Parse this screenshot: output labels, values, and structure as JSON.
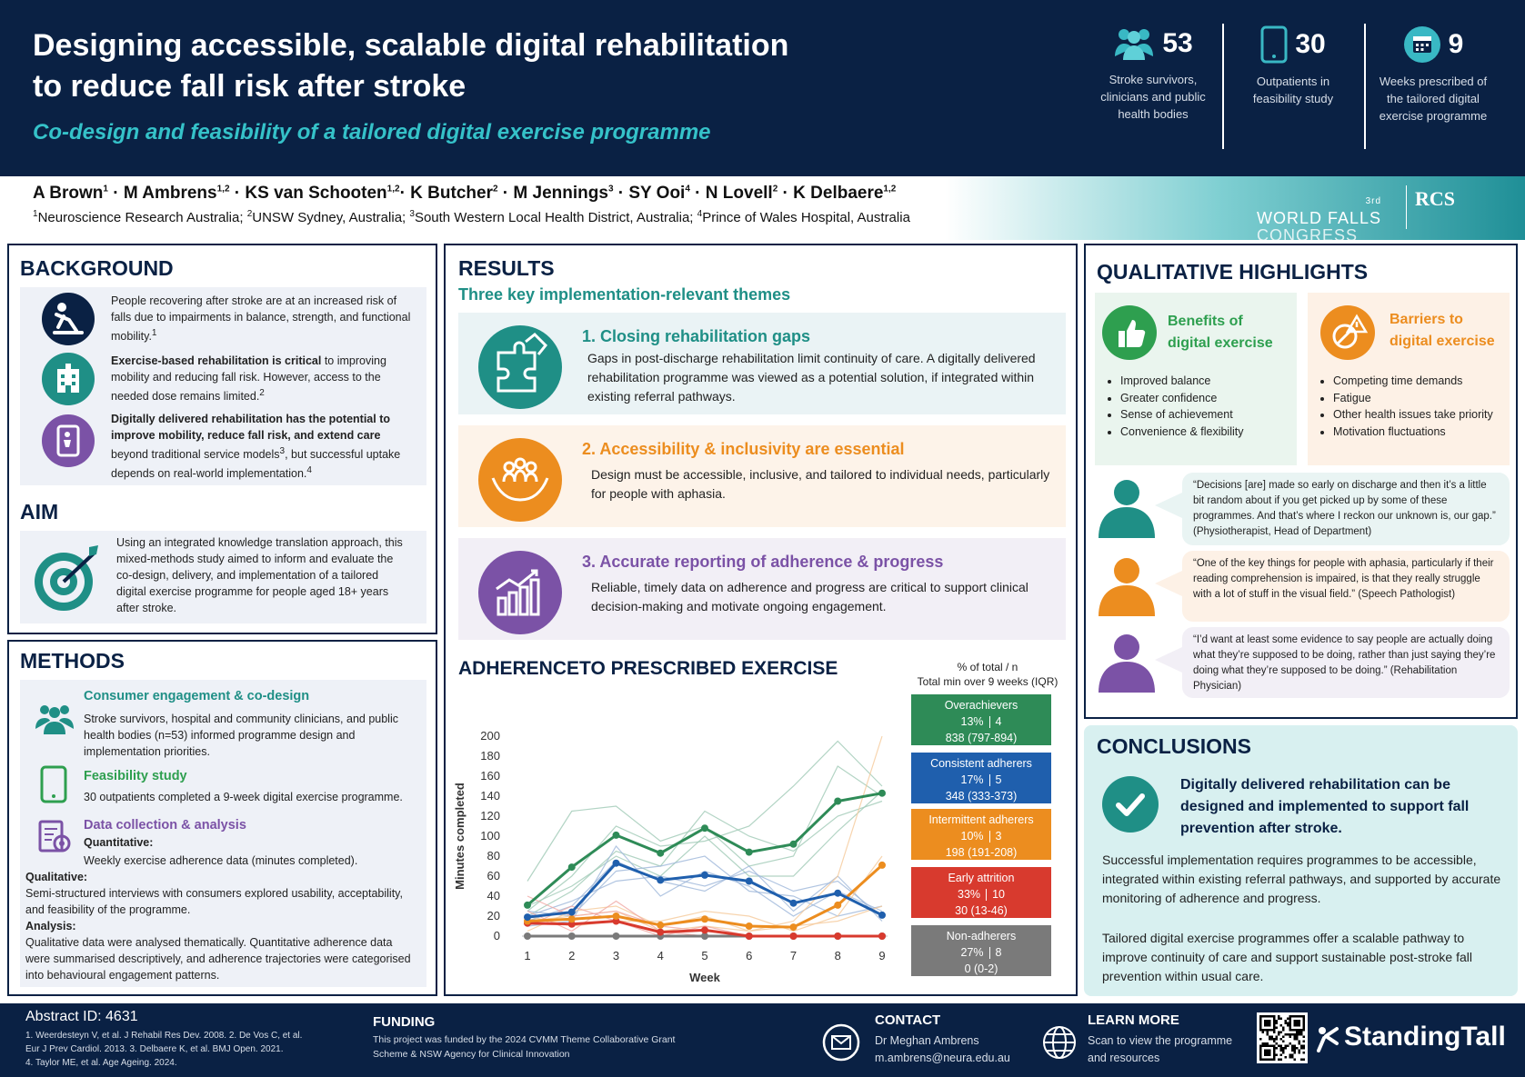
{
  "header": {
    "title_line1": "Designing accessible, scalable digital rehabilitation",
    "title_line2": "to reduce fall risk after stroke",
    "subtitle": "Co-design and feasibility of a tailored digital exercise programme"
  },
  "stats": [
    {
      "icon": "people-icon",
      "value": "53",
      "label_l1": "Stroke survivors,",
      "label_l2": "clinicians and public",
      "label_l3": "health bodies"
    },
    {
      "icon": "tablet-icon",
      "value": "30",
      "label_l1": "Outpatients in",
      "label_l2": "feasibility study",
      "label_l3": ""
    },
    {
      "icon": "calendar-icon",
      "value": "9",
      "label_l1": "Weeks prescribed of",
      "label_l2": "the tailored digital",
      "label_l3": "exercise programme"
    }
  ],
  "authors": {
    "a1": "A Brown",
    "s1": "1",
    "a2": " · M Ambrens",
    "s2": "1,2",
    "a3": " · KS van Schooten",
    "s3": "1,2",
    "a4": "· K Butcher",
    "s4": "2",
    "a5": " · M Jennings",
    "s5": "3",
    "a6": " · SY Ooi",
    "s6": "4",
    "a7": " · N Lovell",
    "s7": "2",
    "a8": " · K Delbaere",
    "s8": "1,2"
  },
  "affiliations": {
    "s1": "1",
    "t1": "Neuroscience Research Australia; ",
    "s2": "2",
    "t2": "UNSW Sydney, Australia; ",
    "s3": "3",
    "t3": "South Western Local Health District, Australia; ",
    "s4": "4",
    "t4": "Prince of Wales Hospital, Australia"
  },
  "logos": {
    "wfc_ord": "3rd",
    "wfc_l1": "WORLD FALLS",
    "wfc_l2": "CONGRESS",
    "rcs": "RCS"
  },
  "background": {
    "heading": "BACKGROUND",
    "p1": "People recovering after stroke are at an increased risk of falls due to impairments in balance, strength, and functional mobility.",
    "p1_sup": "1",
    "p2_bold": "Exercise-based rehabilitation is critical",
    "p2": " to improving mobility and reducing fall risk. However, access to the needed dose remains limited.",
    "p2_sup": "2",
    "p3_bold": "Digitally delivered rehabilitation has the potential to improve mobility, reduce fall risk, and extend care",
    "p3a": " beyond traditional service models",
    "p3_sup1": "3",
    "p3b": ", but successful uptake depends on real-world implementation.",
    "p3_sup2": "4"
  },
  "aim": {
    "heading": "AIM",
    "text": "Using an integrated knowledge translation approach, this mixed-methods study aimed to inform and evaluate the co-design, delivery, and implementation of a tailored digital exercise programme for people aged 18+ years after stroke."
  },
  "methods": {
    "heading": "METHODS",
    "m1_title": "Consumer engagement & co-design",
    "m1_text": "Stroke survivors, hospital and community clinicians, and public health bodies (n=53) informed programme design and implementation priorities.",
    "m2_title": "Feasibility study",
    "m2_text": "30 outpatients completed a 9-week digital exercise programme.",
    "m3_title": "Data collection & analysis",
    "quant_label": "Quantitative:",
    "quant_text": "Weekly exercise adherence data (minutes completed).",
    "qual_label": "Qualitative:",
    "qual_text": "Semi-structured interviews with consumers explored usability, acceptability, and feasibility of the programme.",
    "analysis_label": "Analysis:",
    "analysis_text": "Qualitative data were analysed thematically. Quantitative adherence data were summarised descriptively, and adherence trajectories were categorised into behavioural engagement patterns."
  },
  "results": {
    "heading": "RESULTS",
    "subheading": "Three key implementation-relevant themes",
    "themes": [
      {
        "title": "1. Closing rehabilitation gaps",
        "text": "Gaps in post-discharge rehabilitation limit continuity of care. A digitally delivered rehabilitation programme was viewed as a potential solution, if integrated within existing referral pathways.",
        "icon": "puzzle-icon"
      },
      {
        "title": "2. Accessibility & inclusivity are essential",
        "text": "Design must be accessible, inclusive, and tailored to individual needs, particularly for people with aphasia.",
        "icon": "hands-people-icon"
      },
      {
        "title": "3. Accurate reporting of adherence & progress",
        "text": "Reliable, timely data on adherence and progress are critical to support clinical decision-making and motivate ongoing engagement.",
        "icon": "growth-chart-icon"
      }
    ]
  },
  "adherence": {
    "heading": "ADHERENCETO PRESCRIBED EXERCISE",
    "legend_head1": "% of total / n",
    "legend_head2": "Total min over 9 weeks  (IQR)",
    "groups": [
      {
        "name": "Overachievers",
        "pct": "13%",
        "n": "4",
        "minutes": "838 (797-894)",
        "color": "#2e8b57"
      },
      {
        "name": "Consistent adherers",
        "pct": "17%",
        "n": "5",
        "minutes": "348 (333-373)",
        "color": "#1f5fad"
      },
      {
        "name": "Intermittent adherers",
        "pct": "10%",
        "n": "3",
        "minutes": "198 (191-208)",
        "color": "#ec8d1f"
      },
      {
        "name": "Early attrition",
        "pct": "33%",
        "n": "10",
        "minutes": "30 (13-46)",
        "color": "#d83a2e"
      },
      {
        "name": "Non-adherers",
        "pct": "27%",
        "n": "8",
        "minutes": "0 (0-2)",
        "color": "#7a7a7a"
      }
    ]
  },
  "chart_data": {
    "type": "line",
    "xlabel": "Week",
    "ylabel": "Minutes completed",
    "x": [
      1,
      2,
      3,
      4,
      5,
      6,
      7,
      8,
      9
    ],
    "ylim": [
      0,
      200
    ],
    "yticks": [
      0,
      20,
      40,
      60,
      80,
      100,
      120,
      140,
      160,
      180,
      200
    ],
    "series": [
      {
        "name": "Overachievers",
        "color": "#2e8b57",
        "values": [
          31,
          69,
          101,
          83,
          108,
          84,
          92,
          135,
          143
        ]
      },
      {
        "name": "Consistent adherers",
        "color": "#1f5fad",
        "values": [
          19,
          24,
          73,
          56,
          61,
          55,
          33,
          43,
          21
        ]
      },
      {
        "name": "Intermittent adherers",
        "color": "#ec8d1f",
        "values": [
          15,
          17,
          20,
          11,
          17,
          10,
          9,
          31,
          71
        ]
      },
      {
        "name": "Early attrition",
        "color": "#d83a2e",
        "values": [
          13,
          12,
          15,
          4,
          6,
          0,
          0,
          0,
          0
        ]
      },
      {
        "name": "Non-adherers",
        "color": "#7a7a7a",
        "values": [
          0,
          0,
          0,
          0,
          0,
          0,
          0,
          0,
          0
        ]
      }
    ],
    "individual_series": [
      {
        "color": "#9fc9b5",
        "values": [
          55,
          125,
          130,
          95,
          110,
          70,
          80,
          170,
          140
        ]
      },
      {
        "color": "#9fc9b5",
        "values": [
          20,
          45,
          85,
          70,
          125,
          100,
          85,
          120,
          135
        ]
      },
      {
        "color": "#9fc9b5",
        "values": [
          25,
          60,
          110,
          90,
          95,
          110,
          150,
          195,
          150
        ]
      },
      {
        "color": "#9fc9b5",
        "values": [
          30,
          50,
          80,
          60,
          100,
          60,
          60,
          105,
          145
        ]
      },
      {
        "color": "#9db7da",
        "values": [
          15,
          30,
          75,
          55,
          45,
          70,
          25,
          60,
          15
        ]
      },
      {
        "color": "#9db7da",
        "values": [
          25,
          20,
          65,
          70,
          80,
          45,
          40,
          20,
          30
        ]
      },
      {
        "color": "#9db7da",
        "values": [
          10,
          15,
          90,
          40,
          65,
          50,
          20,
          45,
          25
        ]
      },
      {
        "color": "#9db7da",
        "values": [
          20,
          35,
          55,
          60,
          50,
          65,
          45,
          55,
          20
        ]
      },
      {
        "color": "#f5c99a",
        "values": [
          5,
          25,
          30,
          10,
          20,
          5,
          15,
          60,
          200
        ]
      },
      {
        "color": "#f5c99a",
        "values": [
          20,
          10,
          15,
          15,
          25,
          20,
          5,
          20,
          80
        ]
      },
      {
        "color": "#f5c99a",
        "values": [
          15,
          20,
          25,
          5,
          10,
          5,
          10,
          15,
          30
        ]
      },
      {
        "color": "#f0a8a2",
        "values": [
          40,
          20,
          25,
          10,
          5,
          0,
          0,
          0,
          0
        ]
      },
      {
        "color": "#f0a8a2",
        "values": [
          10,
          30,
          15,
          0,
          10,
          0,
          0,
          0,
          0
        ]
      },
      {
        "color": "#f0a8a2",
        "values": [
          25,
          5,
          35,
          5,
          0,
          0,
          0,
          0,
          0
        ]
      }
    ]
  },
  "qualitative": {
    "heading": "QUALITATIVE HIGHLIGHTS",
    "benefits_title_l1": "Benefits of",
    "benefits_title_l2": "digital exercise",
    "benefits": [
      "Improved balance",
      "Greater confidence",
      "Sense of achievement",
      "Convenience & flexibility"
    ],
    "barriers_title_l1": "Barriers to",
    "barriers_title_l2": "digital exercise",
    "barriers": [
      "Competing time demands",
      "Fatigue",
      "Other health issues take priority",
      "Motivation fluctuations"
    ],
    "quotes": [
      {
        "text": "“Decisions [are] made so early on discharge and then it’s a little bit random about if you get picked up by some of these programmes. And that’s where I reckon our unknown is, our gap.” (Physiotherapist, Head of Department)",
        "color": "#1f8f86"
      },
      {
        "text": "“One of the key things for people with aphasia, particularly if their reading comprehension is impaired, is that they really struggle with a lot of stuff in the visual field.” (Speech Pathologist)",
        "color": "#ec8d1f"
      },
      {
        "text": "“I’d want at least some evidence to say people are actually doing what they’re supposed to be doing, rather than just saying they’re doing what they’re supposed to be doing.” (Rehabilitation Physician)",
        "color": "#7b52a6"
      }
    ]
  },
  "conclusions": {
    "heading": "CONCLUSIONS",
    "key": "Digitally delivered rehabilitation can be designed and implemented to support fall prevention after stroke.",
    "p1": "Successful implementation requires programmes to be accessible, integrated within existing referral pathways, and supported by accurate monitoring of adherence and progress.",
    "p2": "Tailored digital exercise programmes offer a scalable pathway to improve continuity of care and support sustainable post-stroke fall prevention within usual care."
  },
  "footer": {
    "abstract": "Abstract ID: 4631",
    "ref1": "1. Weerdesteyn V, et al. J Rehabil Res Dev. 2008. 2. De Vos C, et al.",
    "ref2": "Eur J Prev Cardiol. 2013. 3. Delbaere K, et al. BMJ Open. 2021.",
    "ref3": "4. Taylor ME, et al. Age Ageing. 2024.",
    "funding_title": "FUNDING",
    "funding_l1": "This project was funded by the 2024 CVMM Theme Collaborative Grant",
    "funding_l2": "Scheme & NSW Agency for Clinical Innovation",
    "contact_title": "CONTACT",
    "contact_name": "Dr Meghan Ambrens",
    "contact_email": "m.ambrens@neura.edu.au",
    "learn_title": "LEARN MORE",
    "learn_l1": "Scan to view the programme",
    "learn_l2": "and resources",
    "brand": "StandingTall"
  }
}
